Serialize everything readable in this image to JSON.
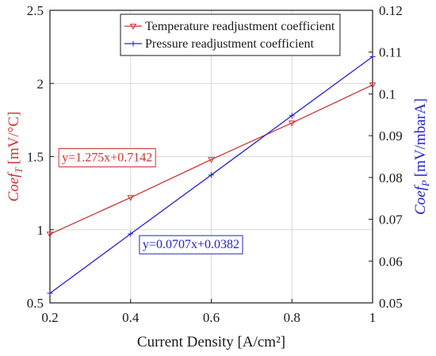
{
  "chart_data": {
    "type": "line",
    "xlabel": "Current Density [A/cm²]",
    "x": [
      0.2,
      0.4,
      0.6,
      0.8,
      1.0
    ],
    "xlim": [
      0.2,
      1.0
    ],
    "xticks": [
      "0.2",
      "0.4",
      "0.6",
      "0.8",
      "1"
    ],
    "ylim_left": [
      0.5,
      2.5
    ],
    "yticks_left": [
      "0.5",
      "1",
      "1.5",
      "2",
      "2.5"
    ],
    "ylabel_left": {
      "main": "Coef",
      "sub": "T",
      "unit": "[mV/°C]",
      "color": "#cc3333"
    },
    "ylim_right": [
      0.05,
      0.12
    ],
    "yticks_right": [
      "0.05",
      "0.06",
      "0.07",
      "0.08",
      "0.09",
      "0.1",
      "0.11",
      "0.12"
    ],
    "ylabel_right": {
      "main": "Coef",
      "sub": "P",
      "unit": "[mV/mbarA]",
      "color": "#2222cc"
    },
    "grid": true,
    "legend_position": "top-right",
    "series": [
      {
        "name": "Temperature readjustment coefficient",
        "axis": "left",
        "color": "#cc3333",
        "marker": "triangle-down",
        "values": [
          0.97,
          1.22,
          1.48,
          1.73,
          1.99
        ]
      },
      {
        "name": "Pressure readjustment coefficient",
        "axis": "right",
        "color": "#2222cc",
        "marker": "plus",
        "values": [
          0.0523,
          0.0665,
          0.0806,
          0.0948,
          0.1089
        ]
      }
    ],
    "annotations": [
      {
        "text": "y=1.275x+0.7142",
        "color": "#cc3333",
        "anchor_x": 0.22,
        "anchor_y": 1.5,
        "axis": "left"
      },
      {
        "text": "y=0.0707x+0.0382",
        "color": "#2222cc",
        "anchor_x": 0.42,
        "anchor_y": 0.0642,
        "axis": "right"
      }
    ]
  }
}
